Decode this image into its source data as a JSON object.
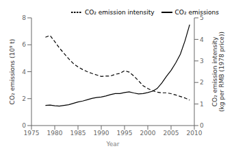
{
  "chart_data": {
    "type": "line",
    "x_label": "Year",
    "y_label": "CO₂ emissions (10⁹ t)",
    "y2_label": "CO₂ emission intensity\n(kg per RMB (1978 price))",
    "x": [
      1978,
      1979,
      1980,
      1981,
      1982,
      1983,
      1984,
      1985,
      1986,
      1987,
      1988,
      1989,
      1990,
      1991,
      1992,
      1993,
      1994,
      1995,
      1996,
      1997,
      1998,
      1999,
      2000,
      2001,
      2002,
      2003,
      2004,
      2005,
      2006,
      2007,
      2008,
      2009
    ],
    "xlim": [
      1975,
      2010
    ],
    "xticks": [
      1975,
      1980,
      1985,
      1990,
      1995,
      2000,
      2005,
      2010
    ],
    "ylim": [
      0,
      8
    ],
    "yticks": [
      0,
      2,
      4,
      6,
      8
    ],
    "y2lim": [
      0,
      5
    ],
    "y2ticks": [
      0,
      1,
      2,
      3,
      4,
      5
    ],
    "legend": "upper right",
    "series": [
      {
        "name": "CO₂ emissions",
        "color": "#000000",
        "line_style": "solid",
        "axis": "y",
        "values": [
          1.5,
          1.52,
          1.47,
          1.45,
          1.5,
          1.55,
          1.65,
          1.75,
          1.82,
          1.92,
          2.02,
          2.08,
          2.12,
          2.2,
          2.3,
          2.38,
          2.38,
          2.45,
          2.5,
          2.42,
          2.35,
          2.38,
          2.45,
          2.55,
          2.75,
          3.15,
          3.65,
          4.1,
          4.65,
          5.3,
          6.3,
          7.5
        ]
      },
      {
        "name": "CO₂ emission intensity",
        "color": "#000000",
        "line_style": "dashed",
        "axis": "y2",
        "values": [
          4.1,
          4.18,
          3.9,
          3.6,
          3.35,
          3.1,
          2.88,
          2.72,
          2.6,
          2.5,
          2.42,
          2.35,
          2.28,
          2.3,
          2.3,
          2.38,
          2.42,
          2.55,
          2.48,
          2.3,
          2.08,
          1.85,
          1.72,
          1.62,
          1.55,
          1.52,
          1.52,
          1.48,
          1.42,
          1.35,
          1.28,
          1.18
        ]
      }
    ]
  }
}
